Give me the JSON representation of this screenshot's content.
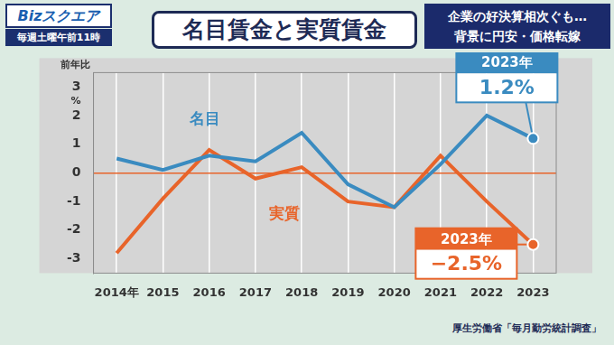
{
  "header": {
    "program": "Bizスクエア",
    "schedule": "毎週土曜午前11時",
    "headline": [
      "企業の好決算相次ぐも…",
      "背景に円安・価格転嫁"
    ]
  },
  "chart_data": {
    "type": "line",
    "title": "名目賃金と実質賃金",
    "y_label": "前年比",
    "unit": "%",
    "source": "厚生労働省「毎月勤労統計調査」",
    "categories": [
      "2014年",
      "2015",
      "2016",
      "2017",
      "2018",
      "2019",
      "2020",
      "2021",
      "2022",
      "2023"
    ],
    "series": [
      {
        "name": "名目",
        "color": "#3a8bc0",
        "values": [
          0.5,
          0.1,
          0.6,
          0.4,
          1.4,
          -0.4,
          -1.2,
          0.3,
          2.0,
          1.2
        ],
        "value_labels": [
          null,
          null,
          null,
          null,
          null,
          null,
          null,
          null,
          null,
          "1.2%"
        ]
      },
      {
        "name": "実質",
        "color": "#e8642a",
        "values": [
          -2.8,
          -0.9,
          0.8,
          -0.2,
          0.2,
          -1.0,
          -1.2,
          0.6,
          -1.0,
          -2.5
        ],
        "value_labels": [
          null,
          null,
          null,
          null,
          null,
          null,
          null,
          null,
          null,
          "−2.5%"
        ]
      }
    ],
    "annotations": [
      {
        "series": "名目",
        "text": "2023年"
      },
      {
        "series": "実質",
        "text": "2023年"
      }
    ],
    "data_labels": true,
    "ylim": [
      -3.5,
      3.5
    ],
    "yticks": [
      -3,
      -2,
      -1,
      0,
      1,
      2,
      3
    ],
    "grid": true
  }
}
